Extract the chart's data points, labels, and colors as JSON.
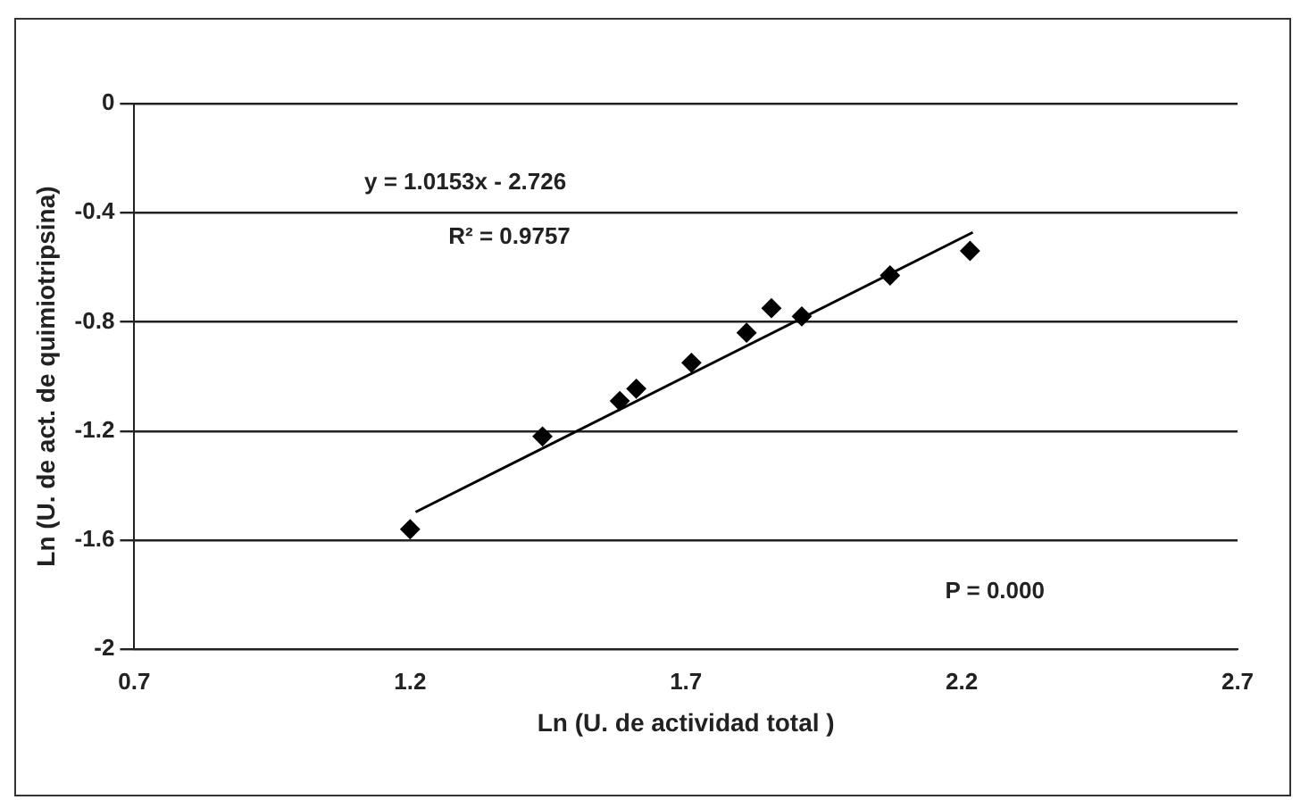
{
  "chart_data": {
    "type": "scatter",
    "xlabel": "Ln (U. de actividad total )",
    "ylabel": "Ln (U. de act. de quimiotripsina)",
    "annotations": [
      "y = 1.0153x - 2.726",
      "R² = 0.9757",
      "P = 0.000"
    ],
    "series": [
      {
        "color": "#000000",
        "marker": "diamond",
        "x": [
          1.2,
          1.44,
          1.58,
          1.61,
          1.71,
          1.81,
          1.855,
          1.91,
          2.07,
          2.215
        ],
        "values": [
          -1.56,
          -1.22,
          -1.09,
          -1.045,
          -0.95,
          -0.84,
          -0.75,
          -0.78,
          -0.63,
          -0.54
        ]
      },
      {
        "type": "line",
        "color": "#000000",
        "marker": "none",
        "x": [
          1.21,
          2.22
        ],
        "values": [
          -1.497,
          -0.472
        ]
      }
    ],
    "xlim": [
      0.7,
      2.7
    ],
    "xticks": [
      0.7,
      1.2,
      1.7,
      2.2,
      2.7
    ],
    "ylim": [
      -2,
      0
    ],
    "yticks": [
      -2,
      -1.6,
      -1.2,
      -0.8,
      -0.4,
      0
    ],
    "grid": "y",
    "legend": false
  }
}
